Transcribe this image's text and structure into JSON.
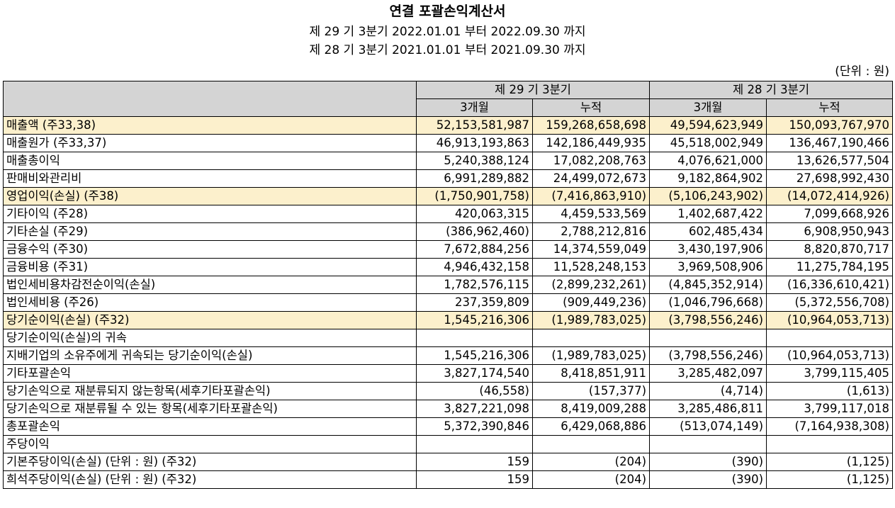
{
  "header": {
    "title": "연결 포괄손익계산서",
    "period_current": "제 29 기 3분기 2022.01.01 부터 2022.09.30 까지",
    "period_prior": "제 28 기 3분기 2021.01.01 부터 2021.09.30 까지",
    "unit": "(단위 : 원)"
  },
  "table": {
    "group_headers": [
      "제 29 기 3분기",
      "제 28 기 3분기"
    ],
    "sub_headers": [
      "3개월",
      "누적",
      "3개월",
      "누적"
    ],
    "rows": [
      {
        "label": "매출액 (주33,38)",
        "values": [
          "52,153,581,987",
          "159,268,658,698",
          "49,594,623,949",
          "150,093,767,970"
        ]
      },
      {
        "label": "매출원가 (주33,37)",
        "values": [
          "46,913,193,863",
          "142,186,449,935",
          "45,518,002,949",
          "136,467,190,466"
        ]
      },
      {
        "label": "매출총이익",
        "values": [
          "5,240,388,124",
          "17,082,208,763",
          "4,076,621,000",
          "13,626,577,504"
        ]
      },
      {
        "label": "판매비와관리비",
        "values": [
          "6,991,289,882",
          "24,499,072,673",
          "9,182,864,902",
          "27,698,992,430"
        ]
      },
      {
        "label": "영업이익(손실) (주38)",
        "values": [
          "(1,750,901,758)",
          "(7,416,863,910)",
          "(5,106,243,902)",
          "(14,072,414,926)"
        ]
      },
      {
        "label": "기타이익 (주28)",
        "values": [
          "420,063,315",
          "4,459,533,569",
          "1,402,687,422",
          "7,099,668,926"
        ]
      },
      {
        "label": "기타손실 (주29)",
        "values": [
          "(386,962,460)",
          "2,788,212,816",
          "602,485,434",
          "6,908,950,943"
        ]
      },
      {
        "label": "금융수익 (주30)",
        "values": [
          "7,672,884,256",
          "14,374,559,049",
          "3,430,197,906",
          "8,820,870,717"
        ]
      },
      {
        "label": "금융비용 (주31)",
        "values": [
          "4,946,432,158",
          "11,528,248,153",
          "3,969,508,906",
          "11,275,784,195"
        ]
      },
      {
        "label": "법인세비용차감전순이익(손실)",
        "values": [
          "1,782,576,115",
          "(2,899,232,261)",
          "(4,845,352,914)",
          "(16,336,610,421)"
        ]
      },
      {
        "label": "법인세비용 (주26)",
        "values": [
          "237,359,809",
          "(909,449,236)",
          "(1,046,796,668)",
          "(5,372,556,708)"
        ]
      },
      {
        "label": "당기순이익(손실) (주32)",
        "values": [
          "1,545,216,306",
          "(1,989,783,025)",
          "(3,798,556,246)",
          "(10,964,053,713)"
        ]
      },
      {
        "label": "당기순이익(손실)의 귀속",
        "values": [
          "",
          "",
          "",
          ""
        ]
      },
      {
        "label": "지배기업의 소유주에게 귀속되는 당기순이익(손실)",
        "values": [
          "1,545,216,306",
          "(1,989,783,025)",
          "(3,798,556,246)",
          "(10,964,053,713)"
        ]
      },
      {
        "label": "기타포괄손익",
        "values": [
          "3,827,174,540",
          "8,418,851,911",
          "3,285,482,097",
          "3,799,115,405"
        ]
      },
      {
        "label": "당기손익으로 재분류되지 않는항목(세후기타포괄손익)",
        "values": [
          "(46,558)",
          "(157,377)",
          "(4,714)",
          "(1,613)"
        ]
      },
      {
        "label": "당기손익으로 재분류될 수 있는 항목(세후기타포괄손익)",
        "values": [
          "3,827,221,098",
          "8,419,009,288",
          "3,285,486,811",
          "3,799,117,018"
        ]
      },
      {
        "label": "총포괄손익",
        "values": [
          "5,372,390,846",
          "6,429,068,886",
          "(513,074,149)",
          "(7,164,938,308)"
        ]
      },
      {
        "label": "주당이익",
        "values": [
          "",
          "",
          "",
          ""
        ]
      },
      {
        "label": "기본주당이익(손실) (단위 : 원) (주32)",
        "values": [
          "159",
          "(204)",
          "(390)",
          "(1,125)"
        ]
      },
      {
        "label": "희석주당이익(손실) (단위 : 원) (주32)",
        "values": [
          "159",
          "(204)",
          "(390)",
          "(1,125)"
        ]
      }
    ]
  },
  "colors": {
    "header_fill": "#d4d4d4",
    "highlight_fill": "#fcf0cc"
  }
}
